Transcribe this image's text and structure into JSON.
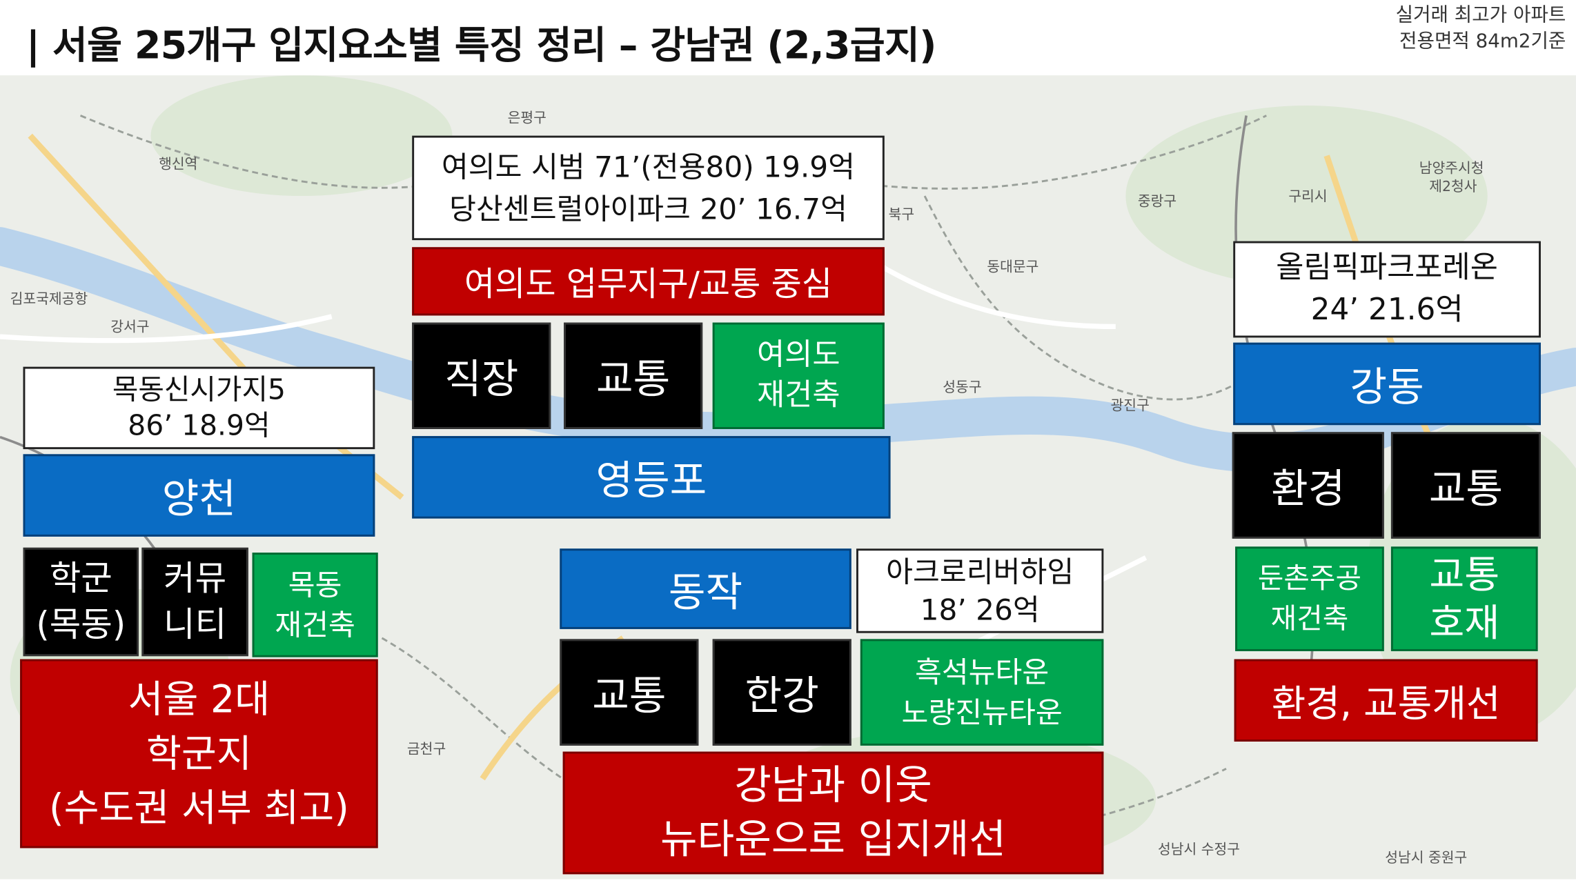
{
  "header": {
    "title": "| 서울 25개구 입지요소별 특징 정리 – 강남권 (2,3급지)",
    "note_line1": "실거래 최고가 아파트",
    "note_line2": "전용면적 84m2기준"
  },
  "map_labels": {
    "eunpyeong": "은평구",
    "jungnang": "중랑구",
    "dongdaemun": "동대문구",
    "gangseo": "강서구",
    "seongdong": "성동구",
    "gwangjin": "광진구",
    "guri": "구리시",
    "namyangju": "남양주시청",
    "namyangju2": "제2청사",
    "geumcheon": "금천구",
    "sujeong": "성남시 수정구",
    "jungwon": "성남시 중원구",
    "gimpo": "김포국제공항",
    "haengsin": "행신역",
    "seongbuk": "북구"
  },
  "yangcheon": {
    "price_line1": "목동신시가지5",
    "price_line2": "86’ 18.9억",
    "district": "양천",
    "factor1_line1": "학군",
    "factor1_line2": "(목동)",
    "factor2_line1": "커뮤",
    "factor2_line2": "니티",
    "factor3_line1": "목동",
    "factor3_line2": "재건축",
    "summary_line1": "서울 2대",
    "summary_line2": "학군지",
    "summary_line3": "(수도권 서부 최고)"
  },
  "yeongdeungpo": {
    "price_line1": "여의도 시범 71’(전용80) 19.9억",
    "price_line2": "당산센트럴아이파크 20’ 16.7억",
    "summary": "여의도 업무지구/교통 중심",
    "factor1": "직장",
    "factor2": "교통",
    "factor3_line1": "여의도",
    "factor3_line2": "재건축",
    "district": "영등포"
  },
  "dongjak": {
    "district": "동작",
    "price_line1": "아크로리버하임",
    "price_line2": "18’ 26억",
    "factor1": "교통",
    "factor2": "한강",
    "factor3_line1": "흑석뉴타운",
    "factor3_line2": "노량진뉴타운",
    "summary_line1": "강남과 이웃",
    "summary_line2": "뉴타운으로 입지개선"
  },
  "gangdong": {
    "price_line1": "올림픽파크포레온",
    "price_line2": "24’ 21.6억",
    "district": "강동",
    "factor1": "환경",
    "factor2": "교통",
    "factor3_line1": "둔촌주공",
    "factor3_line2": "재건축",
    "factor4_line1": "교통",
    "factor4_line2": "호재",
    "summary": "환경, 교통개선"
  }
}
